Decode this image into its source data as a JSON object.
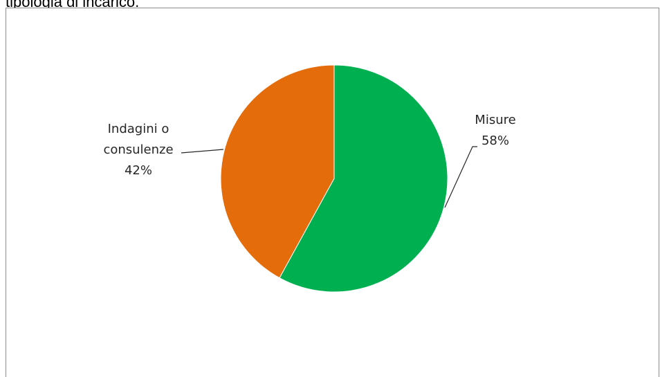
{
  "caption": "tipologia di incarico.",
  "chart_data": {
    "type": "pie",
    "title": "",
    "slices": [
      {
        "label_lines": [
          "Misure"
        ],
        "pct_label": "58%",
        "value": 58,
        "color": "#00b050"
      },
      {
        "label_lines": [
          "Indagini o",
          "consulenze"
        ],
        "pct_label": "42%",
        "value": 42,
        "color": "#e46c0a"
      }
    ],
    "legend": "none",
    "leader_line_color": "#262626"
  }
}
